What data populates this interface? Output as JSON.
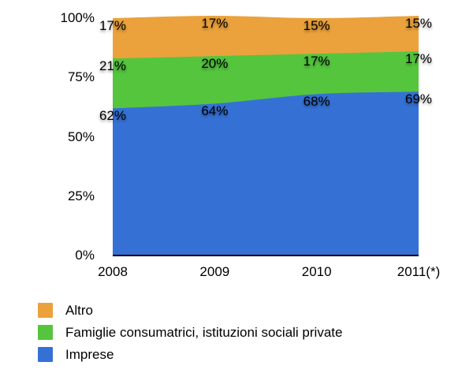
{
  "chart_data": {
    "type": "area",
    "stacked": true,
    "percent_stacked": true,
    "grid": false,
    "x_labels": [
      "2008",
      "2009",
      "2010",
      "2011(*)"
    ],
    "y_ticks": [
      {
        "label": "0%",
        "value": 0
      },
      {
        "label": "25%",
        "value": 25
      },
      {
        "label": "50%",
        "value": 50
      },
      {
        "label": "75%",
        "value": 75
      },
      {
        "label": "100%",
        "value": 100
      }
    ],
    "ylim": [
      0,
      100
    ],
    "series": [
      {
        "name": "Imprese",
        "color": "#3571D5",
        "values": [
          62,
          64,
          68,
          69
        ],
        "data_labels": [
          "62%",
          "64%",
          "68%",
          "69%"
        ]
      },
      {
        "name": "Famiglie consumatrici, istituzioni sociali private",
        "color": "#55C53E",
        "values": [
          21,
          20,
          17,
          17
        ],
        "data_labels": [
          "21%",
          "20%",
          "17%",
          "17%"
        ]
      },
      {
        "name": "Altro",
        "color": "#EBA23C",
        "values": [
          17,
          17,
          15,
          15
        ],
        "data_labels": [
          "17%",
          "17%",
          "15%",
          "15%"
        ]
      }
    ],
    "legend": [
      {
        "label": "Altro",
        "color": "#EBA23C"
      },
      {
        "label": "Famiglie consumatrici, istituzioni sociali private",
        "color": "#55C53E"
      },
      {
        "label": "Imprese",
        "color": "#3571D5"
      }
    ],
    "legend_position": "bottom-left",
    "axis_line_color": "#000000"
  }
}
